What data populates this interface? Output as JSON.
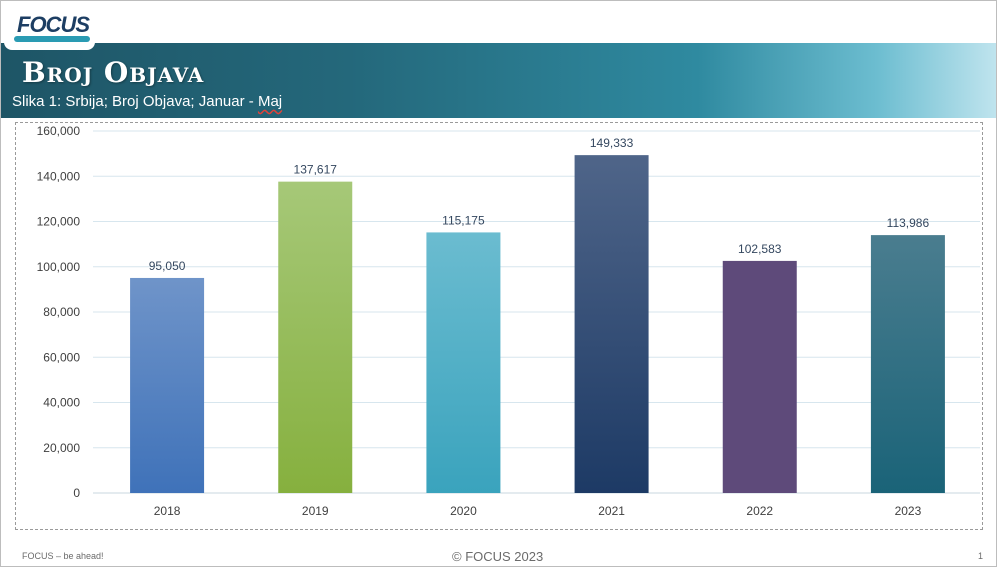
{
  "header": {
    "logo_text": "FOCUS",
    "title": "Broj Objava",
    "subtitle_main": "Slika 1: Srbija; Broj Objava; Januar - ",
    "subtitle_underlined": "Maj"
  },
  "footer": {
    "left": "FOCUS – be ahead!",
    "center": "© FOCUS 2023",
    "page": "1"
  },
  "chart_data": {
    "type": "bar",
    "categories": [
      "2018",
      "2019",
      "2020",
      "2021",
      "2022",
      "2023"
    ],
    "values": [
      95050,
      137617,
      115175,
      149333,
      102583,
      113986
    ],
    "data_labels": [
      "95,050",
      "137,617",
      "115,175",
      "149,333",
      "102,583",
      "113,986"
    ],
    "y_ticks": [
      "0",
      "20,000",
      "40,000",
      "60,000",
      "80,000",
      "100,000",
      "120,000",
      "140,000",
      "160,000"
    ],
    "ylim": [
      0,
      160000
    ],
    "grid": true,
    "colors": [
      {
        "top": "#6f94c9",
        "bottom": "#3f72b9"
      },
      {
        "top": "#a6c878",
        "bottom": "#86b03e"
      },
      {
        "top": "#6bbcd0",
        "bottom": "#3aa3bd"
      },
      {
        "top": "#4f6589",
        "bottom": "#1d3a65"
      },
      {
        "top": "#5e4a7a",
        "bottom": "#5e4a7a"
      },
      {
        "top": "#4a7d8f",
        "bottom": "#1a6378"
      }
    ],
    "label_color": "#34475f",
    "grid_color": "#d7e6ee"
  }
}
